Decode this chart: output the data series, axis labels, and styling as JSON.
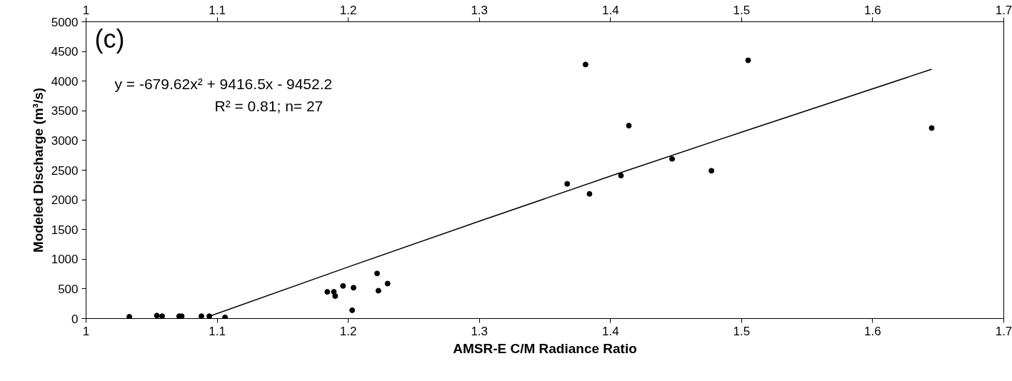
{
  "chart_data": {
    "type": "scatter",
    "xlabel": "AMSR-E C/M Radiance Ratio",
    "ylabel": "Modeled Discharge (m³/s)",
    "annotations": [
      "(c)",
      "y = -679.62x² + 9416.5x - 9452.2",
      "R² = 0.81; n= 27"
    ],
    "xlim": [
      1,
      1.7
    ],
    "xticks": [
      1,
      1.1,
      1.2,
      1.3,
      1.4,
      1.5,
      1.6,
      1.7
    ],
    "x2lim": [
      1,
      1.7
    ],
    "x2ticks": [
      1,
      1.1,
      1.2,
      1.3,
      1.4,
      1.5,
      1.6,
      1.7
    ],
    "ylim": [
      0,
      5000
    ],
    "yticks": [
      0,
      500,
      1000,
      1500,
      2000,
      2500,
      3000,
      3500,
      4000,
      4500,
      5000
    ],
    "grid": false,
    "marker": "circle",
    "series": [
      {
        "color": "#000000",
        "x": [
          1.033,
          1.054,
          1.058,
          1.071,
          1.073,
          1.088,
          1.094,
          1.106,
          1.184,
          1.189,
          1.19,
          1.196,
          1.204,
          1.203,
          1.223,
          1.23,
          1.222,
          1.381,
          1.505,
          1.414,
          1.645,
          1.447,
          1.477,
          1.408,
          1.367,
          1.384
        ],
        "values": [
          30,
          50,
          40,
          40,
          40,
          40,
          40,
          20,
          450,
          450,
          380,
          550,
          520,
          140,
          470,
          590,
          760,
          4280,
          4350,
          3250,
          3210,
          2690,
          2490,
          2410,
          2270,
          2100
        ]
      },
      {
        "type": "line",
        "color": "#000000",
        "line_style": "solid",
        "marker": "none",
        "x": [
          1.093,
          1.2,
          1.3,
          1.4,
          1.5,
          1.645
        ],
        "values": [
          30,
          870,
          1640,
          2400,
          3140,
          4200
        ]
      }
    ]
  }
}
